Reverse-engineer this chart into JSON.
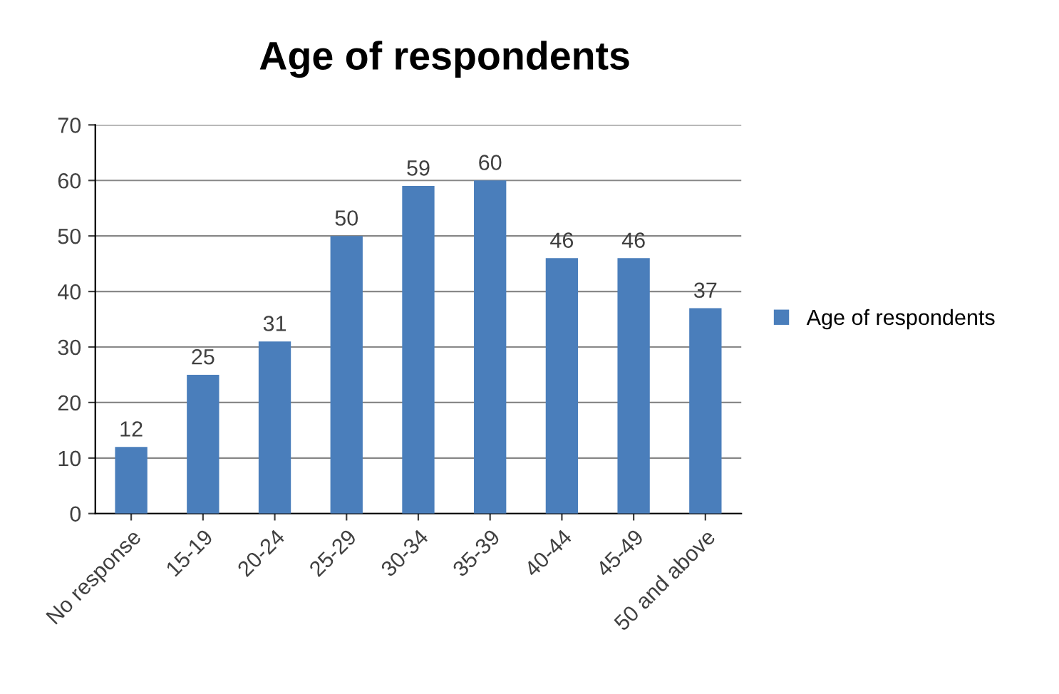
{
  "chart_data": {
    "type": "bar",
    "title": "Age of respondents",
    "categories": [
      "No response",
      "15-19",
      "20-24",
      "25-29",
      "30-34",
      "35-39",
      "40-44",
      "45-49",
      "50 and above"
    ],
    "series": [
      {
        "name": "Age of respondents",
        "color": "#4a7ebb",
        "values": [
          12,
          25,
          31,
          50,
          59,
          60,
          46,
          46,
          37
        ]
      }
    ],
    "ylim": [
      0,
      70
    ],
    "yticks": [
      0,
      10,
      20,
      30,
      40,
      50,
      60,
      70
    ],
    "grid": "y",
    "legend": "right",
    "data_labels": true
  }
}
